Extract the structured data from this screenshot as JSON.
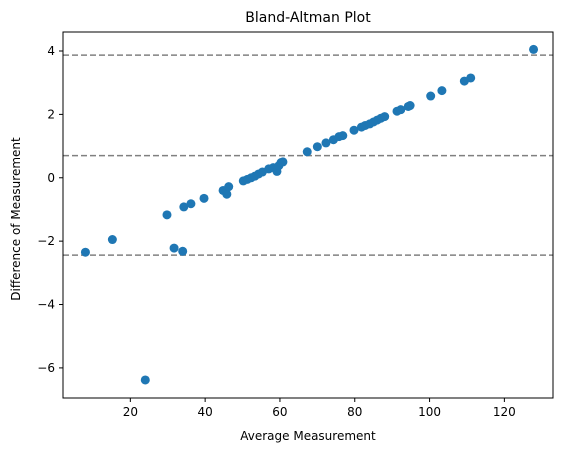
{
  "chart_data": {
    "type": "scatter",
    "title": "Bland-Altman Plot",
    "xlabel": "Average Measurement",
    "ylabel": "Difference of Measurement",
    "xlim": [
      2,
      133
    ],
    "ylim": [
      -6.95,
      4.6
    ],
    "xticks": [
      20,
      40,
      60,
      80,
      100,
      120
    ],
    "yticks": [
      -6,
      -4,
      -2,
      0,
      2,
      4
    ],
    "grid": false,
    "marker_color": "#1f77b4",
    "reference_line_color": "#808080",
    "reference_lines": [
      3.87,
      0.7,
      -2.44
    ],
    "points": [
      {
        "x": 8,
        "y": -2.35
      },
      {
        "x": 15.2,
        "y": -1.95
      },
      {
        "x": 24,
        "y": -6.38
      },
      {
        "x": 29.8,
        "y": -1.17
      },
      {
        "x": 31.7,
        "y": -2.22
      },
      {
        "x": 34,
        "y": -2.32
      },
      {
        "x": 34.3,
        "y": -0.92
      },
      {
        "x": 36.2,
        "y": -0.82
      },
      {
        "x": 39.7,
        "y": -0.65
      },
      {
        "x": 44.8,
        "y": -0.4
      },
      {
        "x": 45.8,
        "y": -0.52
      },
      {
        "x": 46.3,
        "y": -0.28
      },
      {
        "x": 50.2,
        "y": -0.1
      },
      {
        "x": 51.3,
        "y": -0.05
      },
      {
        "x": 52.3,
        "y": 0.0
      },
      {
        "x": 53.3,
        "y": 0.05
      },
      {
        "x": 54.3,
        "y": 0.12
      },
      {
        "x": 55.3,
        "y": 0.18
      },
      {
        "x": 57,
        "y": 0.28
      },
      {
        "x": 58.2,
        "y": 0.32
      },
      {
        "x": 59.2,
        "y": 0.2
      },
      {
        "x": 59.7,
        "y": 0.38
      },
      {
        "x": 60.3,
        "y": 0.48
      },
      {
        "x": 60.8,
        "y": 0.5
      },
      {
        "x": 67.3,
        "y": 0.82
      },
      {
        "x": 70,
        "y": 0.98
      },
      {
        "x": 72.3,
        "y": 1.1
      },
      {
        "x": 74.3,
        "y": 1.2
      },
      {
        "x": 75.8,
        "y": 1.3
      },
      {
        "x": 76.8,
        "y": 1.33
      },
      {
        "x": 79.8,
        "y": 1.5
      },
      {
        "x": 81.8,
        "y": 1.6
      },
      {
        "x": 82.8,
        "y": 1.65
      },
      {
        "x": 84,
        "y": 1.7
      },
      {
        "x": 85,
        "y": 1.76
      },
      {
        "x": 86,
        "y": 1.82
      },
      {
        "x": 87,
        "y": 1.88
      },
      {
        "x": 88,
        "y": 1.93
      },
      {
        "x": 91.3,
        "y": 2.1
      },
      {
        "x": 92.3,
        "y": 2.15
      },
      {
        "x": 94.3,
        "y": 2.25
      },
      {
        "x": 94.8,
        "y": 2.28
      },
      {
        "x": 100.3,
        "y": 2.58
      },
      {
        "x": 103.3,
        "y": 2.75
      },
      {
        "x": 109.3,
        "y": 3.05
      },
      {
        "x": 111,
        "y": 3.15
      },
      {
        "x": 127.8,
        "y": 4.05
      }
    ]
  }
}
